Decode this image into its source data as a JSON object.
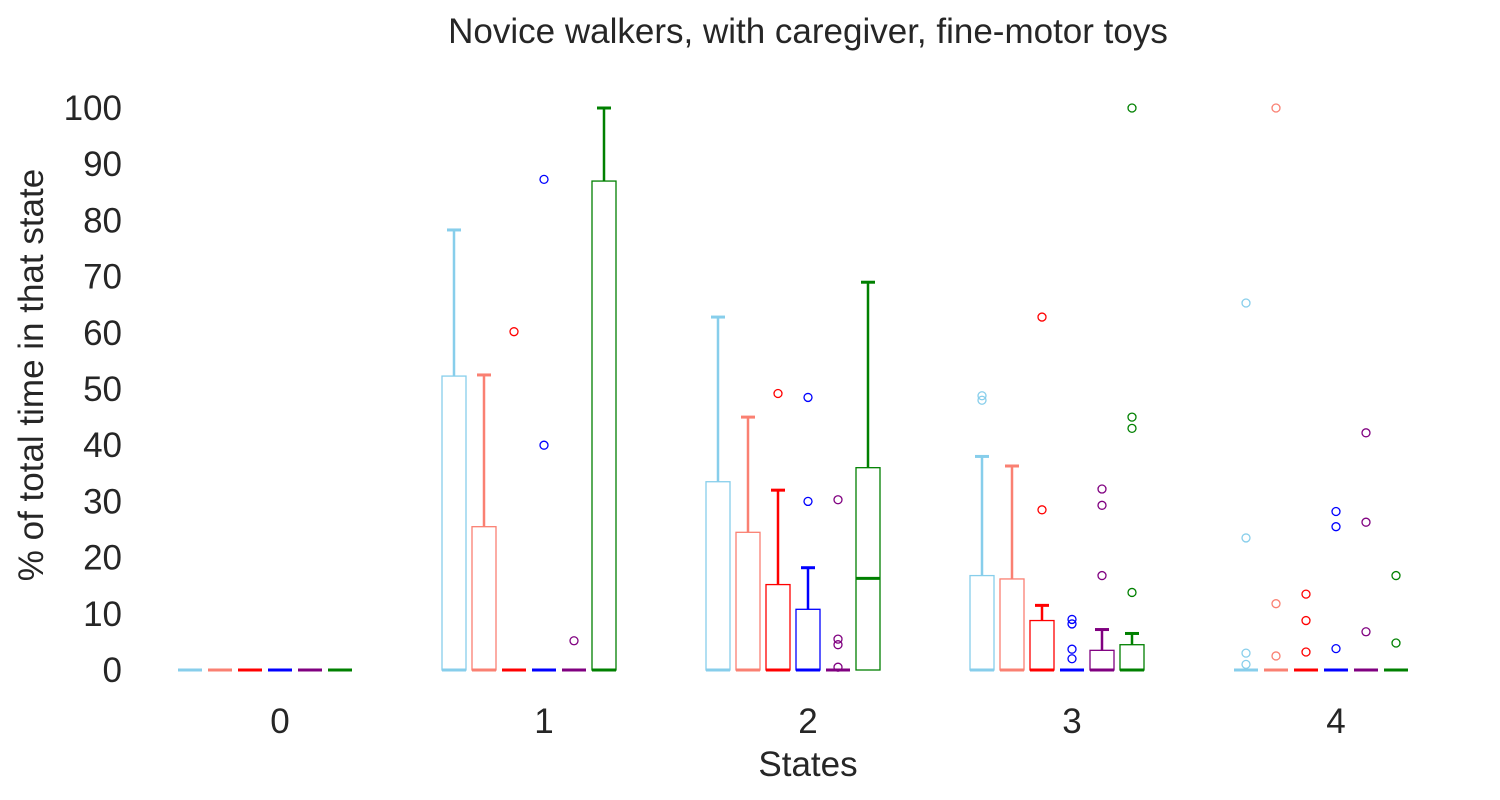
{
  "chart_data": {
    "type": "box",
    "title": "Novice walkers, with caregiver, fine-motor toys",
    "xlabel": "States",
    "ylabel": "% of total time in that state",
    "categories": [
      "0",
      "1",
      "2",
      "3",
      "4"
    ],
    "yticks": [
      "0",
      "10",
      "20",
      "30",
      "40",
      "50",
      "60",
      "70",
      "80",
      "90",
      "100"
    ],
    "ylim": [
      -5,
      104
    ],
    "grid": false,
    "legend": "none",
    "series": [
      {
        "color": "#87ceeb",
        "boxes": [
          {
            "q1": 0,
            "median": 0,
            "q3": 0,
            "whisker_low": 0,
            "whisker_high": 0,
            "outliers": []
          },
          {
            "q1": 0,
            "median": 0,
            "q3": 52.3,
            "whisker_low": 0,
            "whisker_high": 78.3,
            "outliers": []
          },
          {
            "q1": 0,
            "median": 0,
            "q3": 33.5,
            "whisker_low": 0,
            "whisker_high": 62.8,
            "outliers": []
          },
          {
            "q1": 0,
            "median": 0,
            "q3": 16.8,
            "whisker_low": 0,
            "whisker_high": 38,
            "outliers": [
              48,
              48.8
            ]
          },
          {
            "q1": 0,
            "median": 0,
            "q3": 0,
            "whisker_low": 0,
            "whisker_high": 0,
            "outliers": [
              65.3,
              23.5,
              3,
              1
            ]
          }
        ]
      },
      {
        "color": "#fa8072",
        "boxes": [
          {
            "q1": 0,
            "median": 0,
            "q3": 0,
            "whisker_low": 0,
            "whisker_high": 0,
            "outliers": []
          },
          {
            "q1": 0,
            "median": 0,
            "q3": 25.5,
            "whisker_low": 0,
            "whisker_high": 52.5,
            "outliers": []
          },
          {
            "q1": 0,
            "median": 0,
            "q3": 24.5,
            "whisker_low": 0,
            "whisker_high": 45,
            "outliers": []
          },
          {
            "q1": 0,
            "median": 0,
            "q3": 16.2,
            "whisker_low": 0,
            "whisker_high": 36.3,
            "outliers": []
          },
          {
            "q1": 0,
            "median": 0,
            "q3": 0,
            "whisker_low": 0,
            "whisker_high": 0,
            "outliers": [
              100,
              11.8,
              2.5
            ]
          }
        ]
      },
      {
        "color": "#ff0000",
        "boxes": [
          {
            "q1": 0,
            "median": 0,
            "q3": 0,
            "whisker_low": 0,
            "whisker_high": 0,
            "outliers": []
          },
          {
            "q1": 0,
            "median": 0,
            "q3": 0,
            "whisker_low": 0,
            "whisker_high": 0,
            "outliers": [
              60.2
            ]
          },
          {
            "q1": 0,
            "median": 0,
            "q3": 15.2,
            "whisker_low": 0,
            "whisker_high": 32,
            "outliers": [
              49.2
            ]
          },
          {
            "q1": 0,
            "median": 0,
            "q3": 8.8,
            "whisker_low": 0,
            "whisker_high": 11.5,
            "outliers": [
              62.8,
              28.5
            ]
          },
          {
            "q1": 0,
            "median": 0,
            "q3": 0,
            "whisker_low": 0,
            "whisker_high": 0,
            "outliers": [
              13.5,
              8.8,
              3.2
            ]
          }
        ]
      },
      {
        "color": "#0000ff",
        "boxes": [
          {
            "q1": 0,
            "median": 0,
            "q3": 0,
            "whisker_low": 0,
            "whisker_high": 0,
            "outliers": []
          },
          {
            "q1": 0,
            "median": 0,
            "q3": 0,
            "whisker_low": 0,
            "whisker_high": 0,
            "outliers": [
              87.3,
              40
            ]
          },
          {
            "q1": 0,
            "median": 0,
            "q3": 10.8,
            "whisker_low": 0,
            "whisker_high": 18.2,
            "outliers": [
              48.5,
              30
            ]
          },
          {
            "q1": 0,
            "median": 0,
            "q3": 0,
            "whisker_low": 0,
            "whisker_high": 0,
            "outliers": [
              9,
              8.2,
              3.7,
              2
            ]
          },
          {
            "q1": 0,
            "median": 0,
            "q3": 0,
            "whisker_low": 0,
            "whisker_high": 0,
            "outliers": [
              28.2,
              25.5,
              3.8
            ]
          }
        ]
      },
      {
        "color": "#800080",
        "boxes": [
          {
            "q1": 0,
            "median": 0,
            "q3": 0,
            "whisker_low": 0,
            "whisker_high": 0,
            "outliers": []
          },
          {
            "q1": 0,
            "median": 0,
            "q3": 0,
            "whisker_low": 0,
            "whisker_high": 0,
            "outliers": [
              5.2
            ]
          },
          {
            "q1": 0,
            "median": 0,
            "q3": 0,
            "whisker_low": 0,
            "whisker_high": 0,
            "outliers": [
              30.3,
              5.5,
              4.5,
              0.5
            ]
          },
          {
            "q1": 0,
            "median": 0,
            "q3": 3.5,
            "whisker_low": 0,
            "whisker_high": 7.2,
            "outliers": [
              32.2,
              29.3,
              16.8
            ]
          },
          {
            "q1": 0,
            "median": 0,
            "q3": 0,
            "whisker_low": 0,
            "whisker_high": 0,
            "outliers": [
              42.2,
              26.3,
              6.8
            ]
          }
        ]
      },
      {
        "color": "#008000",
        "boxes": [
          {
            "q1": 0,
            "median": 0,
            "q3": 0,
            "whisker_low": 0,
            "whisker_high": 0,
            "outliers": []
          },
          {
            "q1": 0,
            "median": 0,
            "q3": 87,
            "whisker_low": 0,
            "whisker_high": 100,
            "outliers": []
          },
          {
            "q1": 0,
            "median": 16.3,
            "q3": 36,
            "whisker_low": 0,
            "whisker_high": 69,
            "outliers": []
          },
          {
            "q1": 0,
            "median": 0,
            "q3": 4.5,
            "whisker_low": 0,
            "whisker_high": 6.5,
            "outliers": [
              100,
              45,
              43,
              13.8
            ]
          },
          {
            "q1": 0,
            "median": 0,
            "q3": 0,
            "whisker_low": 0,
            "whisker_high": 0,
            "outliers": [
              16.8,
              4.8
            ]
          }
        ]
      }
    ]
  }
}
